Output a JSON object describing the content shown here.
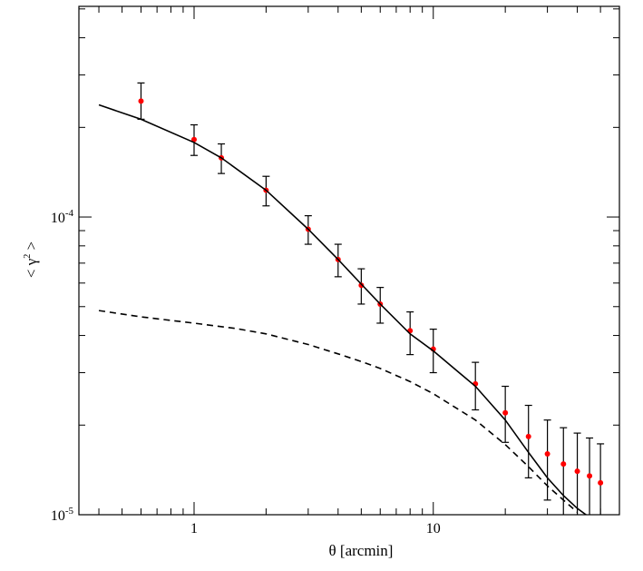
{
  "chart_data": {
    "type": "scatter",
    "xlabel": "θ [arcmin]",
    "ylabel_main": "< γ",
    "ylabel_sup": "2",
    "ylabel_close": " >",
    "xscale": "log",
    "yscale": "log",
    "xlim": [
      0.33,
      60
    ],
    "ylim": [
      1e-05,
      0.00051
    ],
    "grid": false,
    "x_ticks": [
      {
        "value": 1,
        "label": "1"
      },
      {
        "value": 10,
        "label": "10"
      }
    ],
    "y_ticks": [
      {
        "value": 1e-05,
        "base": "10",
        "exp": "-5"
      },
      {
        "value": 0.0001,
        "base": "10",
        "exp": "-4"
      }
    ],
    "series": [
      {
        "style": "points-with-errorbars",
        "color": "#ff0000",
        "points": [
          {
            "x": 0.6,
            "y": 0.000245,
            "ylo": 0.000213,
            "yhi": 0.000282
          },
          {
            "x": 1.0,
            "y": 0.000182,
            "ylo": 0.000161,
            "yhi": 0.000204
          },
          {
            "x": 1.3,
            "y": 0.000158,
            "ylo": 0.00014,
            "yhi": 0.000176
          },
          {
            "x": 2.0,
            "y": 0.000123,
            "ylo": 0.000109,
            "yhi": 0.000137
          },
          {
            "x": 3.0,
            "y": 9.1e-05,
            "ylo": 8.1e-05,
            "yhi": 0.000101
          },
          {
            "x": 4.0,
            "y": 7.2e-05,
            "ylo": 6.3e-05,
            "yhi": 8.1e-05
          },
          {
            "x": 5.0,
            "y": 5.9e-05,
            "ylo": 5.1e-05,
            "yhi": 6.7e-05
          },
          {
            "x": 6.0,
            "y": 5.1e-05,
            "ylo": 4.4e-05,
            "yhi": 5.8e-05
          },
          {
            "x": 8.0,
            "y": 4.15e-05,
            "ylo": 3.45e-05,
            "yhi": 4.8e-05
          },
          {
            "x": 10.0,
            "y": 3.6e-05,
            "ylo": 3e-05,
            "yhi": 4.2e-05
          },
          {
            "x": 15.0,
            "y": 2.75e-05,
            "ylo": 2.25e-05,
            "yhi": 3.25e-05
          },
          {
            "x": 20.0,
            "y": 2.2e-05,
            "ylo": 1.75e-05,
            "yhi": 2.7e-05
          },
          {
            "x": 25.0,
            "y": 1.83e-05,
            "ylo": 1.33e-05,
            "yhi": 2.33e-05
          },
          {
            "x": 30.0,
            "y": 1.6e-05,
            "ylo": 1.12e-05,
            "yhi": 2.08e-05
          },
          {
            "x": 35.0,
            "y": 1.48e-05,
            "ylo": 1e-05,
            "yhi": 1.96e-05
          },
          {
            "x": 40.0,
            "y": 1.4e-05,
            "ylo": 1e-05,
            "yhi": 1.88e-05
          },
          {
            "x": 45.0,
            "y": 1.35e-05,
            "ylo": 1e-05,
            "yhi": 1.81e-05
          },
          {
            "x": 50.0,
            "y": 1.28e-05,
            "ylo": 1e-05,
            "yhi": 1.73e-05
          }
        ]
      },
      {
        "style": "solid-line",
        "color": "#000000",
        "x": [
          0.4,
          0.6,
          1.0,
          1.3,
          2.0,
          3.0,
          4.0,
          5.0,
          6.0,
          8.0,
          10.0,
          15.0,
          20.0,
          25.0,
          30.0,
          35.0,
          40.0,
          45.0
        ],
        "y": [
          0.000238,
          0.000213,
          0.000178,
          0.000158,
          0.000123,
          9.1e-05,
          7.2e-05,
          5.95e-05,
          5.1e-05,
          4.05e-05,
          3.55e-05,
          2.7e-05,
          2.08e-05,
          1.62e-05,
          1.33e-05,
          1.16e-05,
          1.05e-05,
          9.8e-06
        ]
      },
      {
        "style": "dashed-line",
        "color": "#000000",
        "x": [
          0.4,
          0.6,
          1.0,
          1.5,
          2.0,
          3.0,
          4.0,
          5.0,
          6.0,
          8.0,
          10.0,
          15.0,
          20.0,
          25.0,
          30.0,
          35.0,
          40.0
        ],
        "y": [
          4.85e-05,
          4.62e-05,
          4.4e-05,
          4.22e-05,
          4.05e-05,
          3.73e-05,
          3.47e-05,
          3.27e-05,
          3.1e-05,
          2.8e-05,
          2.55e-05,
          2.08e-05,
          1.72e-05,
          1.45e-05,
          1.25e-05,
          1.12e-05,
          1.02e-05
        ]
      }
    ]
  }
}
